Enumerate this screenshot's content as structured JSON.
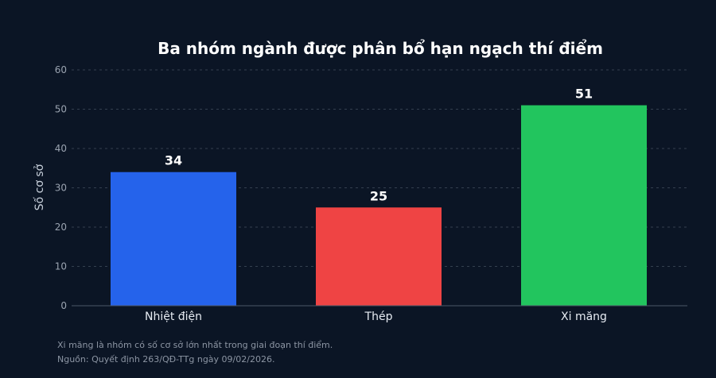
{
  "chart_data": {
    "type": "bar",
    "title": "Ba nhóm ngành được phân bổ hạn ngạch thí điểm",
    "xlabel": "",
    "ylabel": "Số cơ sở",
    "categories": [
      "Nhiệt điện",
      "Thép",
      "Xi măng"
    ],
    "values": [
      34,
      25,
      51
    ],
    "value_labels": [
      "34",
      "25",
      "51"
    ],
    "colors": [
      "#2563eb",
      "#ef4444",
      "#22c55e"
    ],
    "ylim": [
      0,
      60
    ],
    "yticks": [
      0,
      10,
      20,
      30,
      40,
      50,
      60
    ],
    "grid": true
  },
  "notes": {
    "caption": "Xi măng là nhóm có số cơ sở lớn nhất trong giai đoạn thí điểm.",
    "source": "Nguồn: Quyết định 263/QĐ-TTg ngày 09/02/2026."
  }
}
